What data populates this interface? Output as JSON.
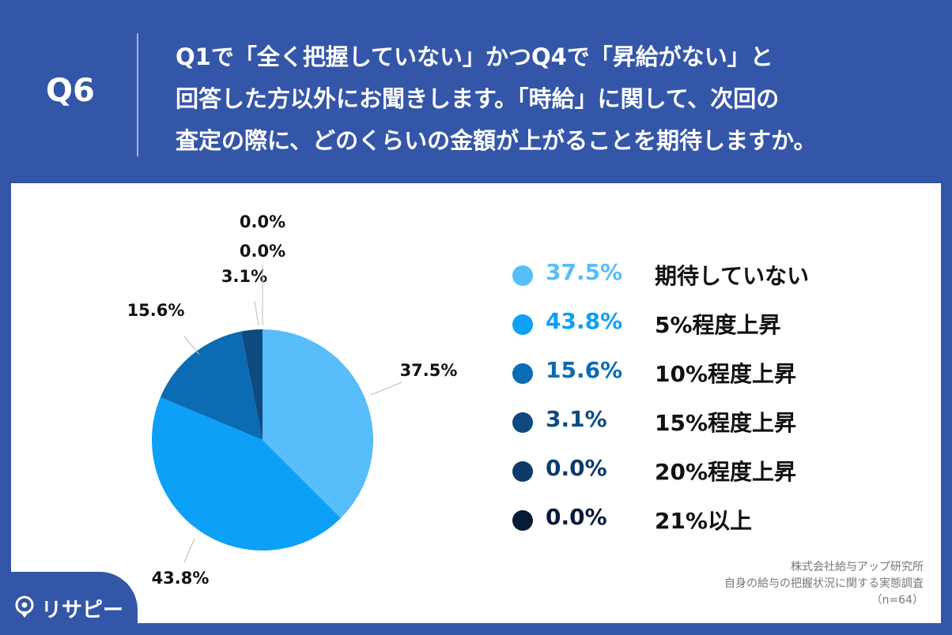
{
  "header": {
    "qnum": "Q6",
    "question_lines": [
      "Q1で「全く把握していない」かつQ4で「昇給がない」と",
      "回答した方以外にお聞きします。「時給」に関して、次回の",
      "査定の際に、どのくらいの金額が上がることを期待しますか。"
    ]
  },
  "chart_data": {
    "type": "pie",
    "categories": [
      "期待していない",
      "5%程度上昇",
      "10%程度上昇",
      "15%程度上昇",
      "20%程度上昇",
      "21%以上"
    ],
    "values": [
      37.5,
      43.8,
      15.6,
      3.1,
      0.0,
      0.0
    ],
    "labels": [
      "37.5%",
      "43.8%",
      "15.6%",
      "3.1%",
      "0.0%",
      "0.0%"
    ],
    "colors": [
      "#57bdfb",
      "#0da0f7",
      "#0b6bb3",
      "#0e4a80",
      "#0e3a6b",
      "#061a38"
    ],
    "legend_position": "right",
    "n_label": "（n=64）"
  },
  "source": {
    "line1": "株式会社給与アップ研究所",
    "line2": "自身の給与の把握状況に関する実態調査"
  },
  "logo": {
    "text": "リサピー",
    "icon": "pin-logo-icon"
  }
}
